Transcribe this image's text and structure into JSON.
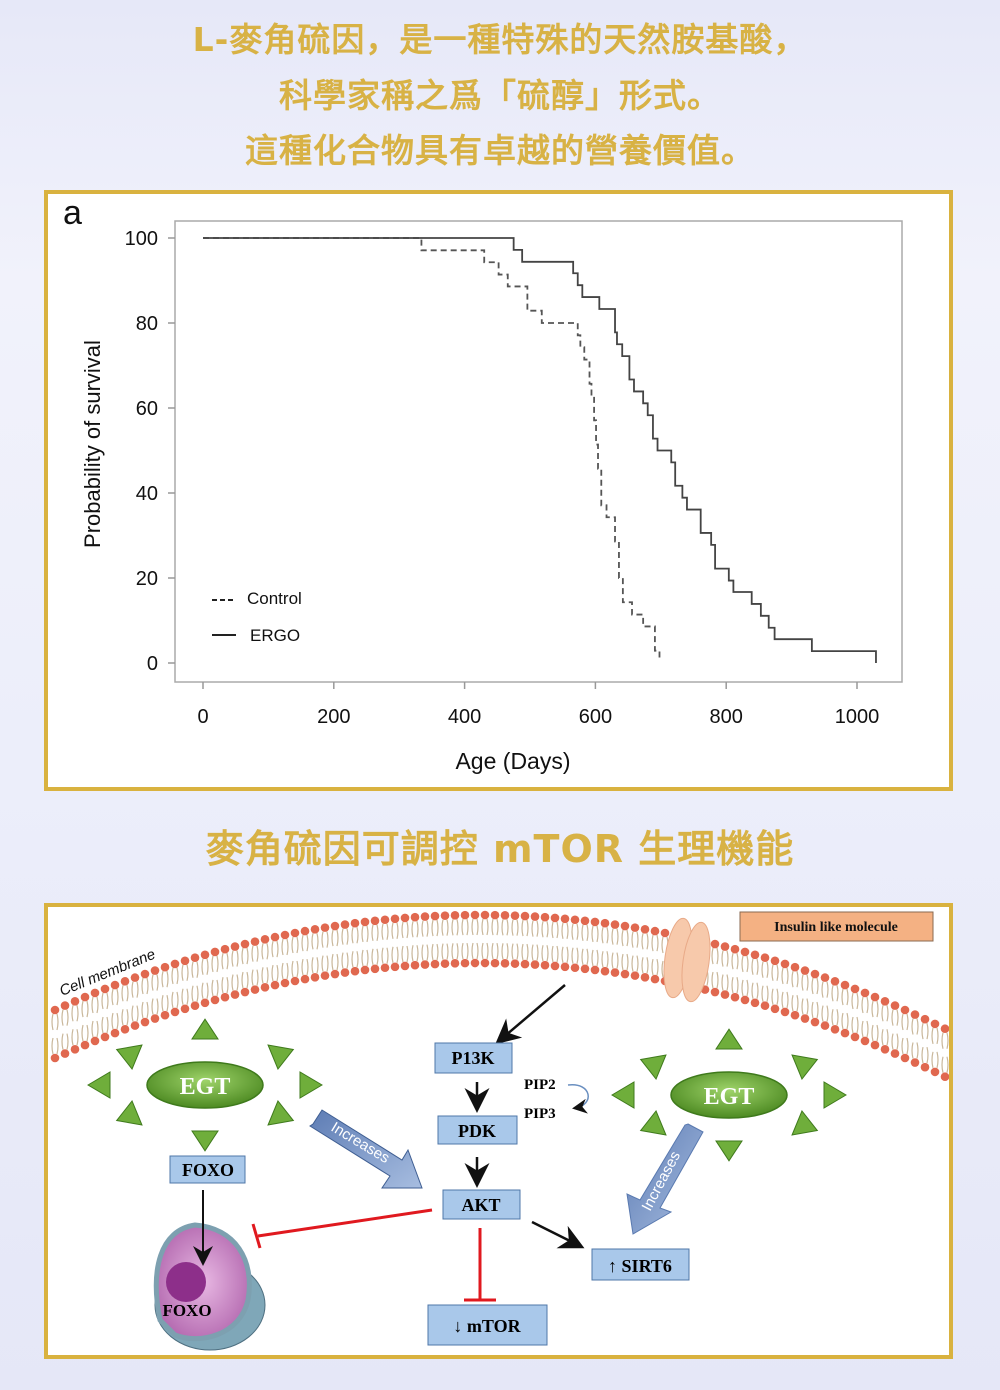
{
  "header": {
    "line1": "L-麥角硫因，是一種特殊的天然胺基酸，",
    "line2": "科學家稱之爲「硫醇」形式。",
    "line3": "這種化合物具有卓越的營養價值。"
  },
  "section2_title": "麥角硫因可調控 mTOR 生理機能",
  "colors": {
    "title_gold": "#d8b245",
    "frame_gold": "#d9b23f",
    "box_blue": "#a9c8ea",
    "inhibit_red": "#e0191f",
    "egt_green": "#5e9b2e",
    "insulin_box": "#f4b183"
  },
  "chart_data": {
    "type": "line",
    "step": true,
    "panel_label": "a",
    "xlabel": "Age (Days)",
    "ylabel": "Probability of survival",
    "xlim": [
      0,
      1000
    ],
    "ylim": [
      0,
      100
    ],
    "xticks": [
      "0",
      "200",
      "400",
      "600",
      "800",
      "1000"
    ],
    "yticks": [
      "0",
      "20",
      "40",
      "60",
      "80",
      "100"
    ],
    "grid": false,
    "legend_position": "bottom-left",
    "series": [
      {
        "name": "Control",
        "style": "dashed",
        "color": "#555555",
        "points": [
          [
            0,
            100
          ],
          [
            334,
            97.1
          ],
          [
            430,
            94.3
          ],
          [
            452,
            91.4
          ],
          [
            466,
            88.6
          ],
          [
            496,
            82.9
          ],
          [
            518,
            80
          ],
          [
            573,
            77.1
          ],
          [
            577,
            74.3
          ],
          [
            583,
            71.4
          ],
          [
            591,
            65.7
          ],
          [
            594,
            62.9
          ],
          [
            598,
            57.1
          ],
          [
            601,
            51.4
          ],
          [
            604,
            45.7
          ],
          [
            609,
            37.1
          ],
          [
            617,
            34.3
          ],
          [
            630,
            28.6
          ],
          [
            636,
            20
          ],
          [
            642,
            14.3
          ],
          [
            656,
            11.4
          ],
          [
            673,
            8.6
          ],
          [
            691,
            2.9
          ],
          [
            698,
            1
          ]
        ]
      },
      {
        "name": "ERGO",
        "style": "solid",
        "color": "#444444",
        "points": [
          [
            0,
            100
          ],
          [
            475,
            97.2
          ],
          [
            488,
            94.4
          ],
          [
            566,
            91.7
          ],
          [
            573,
            88.9
          ],
          [
            580,
            86.1
          ],
          [
            606,
            83.3
          ],
          [
            630,
            77.8
          ],
          [
            633,
            75
          ],
          [
            641,
            72.2
          ],
          [
            652,
            66.7
          ],
          [
            659,
            63.9
          ],
          [
            673,
            61.1
          ],
          [
            680,
            58.3
          ],
          [
            688,
            52.8
          ],
          [
            695,
            50
          ],
          [
            716,
            47.2
          ],
          [
            722,
            41.7
          ],
          [
            733,
            38.9
          ],
          [
            740,
            36.1
          ],
          [
            761,
            30.6
          ],
          [
            777,
            27.8
          ],
          [
            783,
            22.2
          ],
          [
            804,
            19.4
          ],
          [
            811,
            16.7
          ],
          [
            839,
            13.9
          ],
          [
            853,
            11.1
          ],
          [
            865,
            8.3
          ],
          [
            874,
            5.6
          ],
          [
            931,
            2.8
          ],
          [
            1029,
            0
          ]
        ]
      }
    ]
  },
  "diagram": {
    "membrane_label": "Cell membrane",
    "insulin": "Insulin like molecule",
    "pi3k": "P13K",
    "pip2": "PIP2",
    "pip3": "PIP3",
    "pdk": "PDK",
    "akt": "AKT",
    "foxo": "FOXO",
    "foxo_nucleus": "FOXO",
    "mtor": "↓ mTOR",
    "sirt6": "↑ SIRT6",
    "egt_left": "EGT",
    "egt_right": "EGT",
    "increases_left": "Increases",
    "increases_right": "Increases"
  }
}
